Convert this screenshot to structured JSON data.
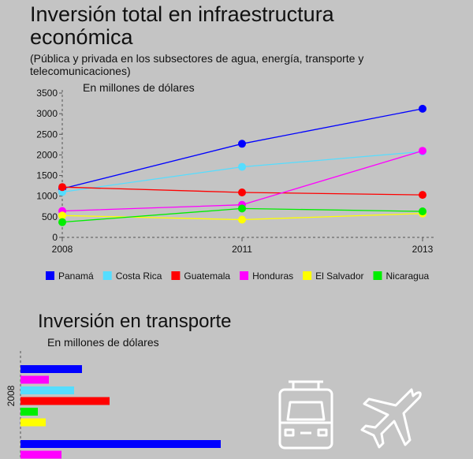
{
  "chart_data": [
    {
      "type": "line",
      "title": "Inversión total en infraestructura económica",
      "subtitle": "(Pública y privada en los subsectores de agua, energía, transporte y telecomunicaciones)",
      "ylabel": "En millones de dólares",
      "x": [
        "2008",
        "2011",
        "2013"
      ],
      "yticks": [
        "0",
        "500",
        "1000",
        "1500",
        "2000",
        "2500",
        "3000",
        "3500"
      ],
      "ylim": [
        0,
        3500
      ],
      "legend_position": "bottom",
      "series": [
        {
          "name": "Panamá",
          "color": "#0000ff",
          "values": [
            1180,
            2270,
            3120
          ]
        },
        {
          "name": "Costa Rica",
          "color": "#55ddff",
          "values": [
            1100,
            1710,
            2080
          ]
        },
        {
          "name": "Guatemala",
          "color": "#ff0000",
          "values": [
            1220,
            1090,
            1030
          ]
        },
        {
          "name": "Honduras",
          "color": "#ff00ff",
          "values": [
            640,
            790,
            2100
          ]
        },
        {
          "name": "El Salvador",
          "color": "#ffff00",
          "values": [
            530,
            430,
            580
          ]
        },
        {
          "name": "Nicaragua",
          "color": "#00ee00",
          "values": [
            370,
            700,
            630
          ]
        }
      ]
    },
    {
      "type": "bar",
      "orientation": "horizontal",
      "title": "Inversión en transporte",
      "xlabel": "En millones de dólares",
      "group_label": "2008",
      "bars": [
        {
          "color": "#0000ff",
          "value": 78
        },
        {
          "color": "#ff00ff",
          "value": 36
        },
        {
          "color": "#55ddff",
          "value": 68
        },
        {
          "color": "#ff0000",
          "value": 113
        },
        {
          "color": "#00ee00",
          "value": 22
        },
        {
          "color": "#ffff00",
          "value": 32
        },
        {
          "color": "#0000ff",
          "value": 254
        },
        {
          "color": "#ff00ff",
          "value": 52
        }
      ]
    }
  ],
  "icons": [
    "bus-icon",
    "airplane-icon"
  ]
}
